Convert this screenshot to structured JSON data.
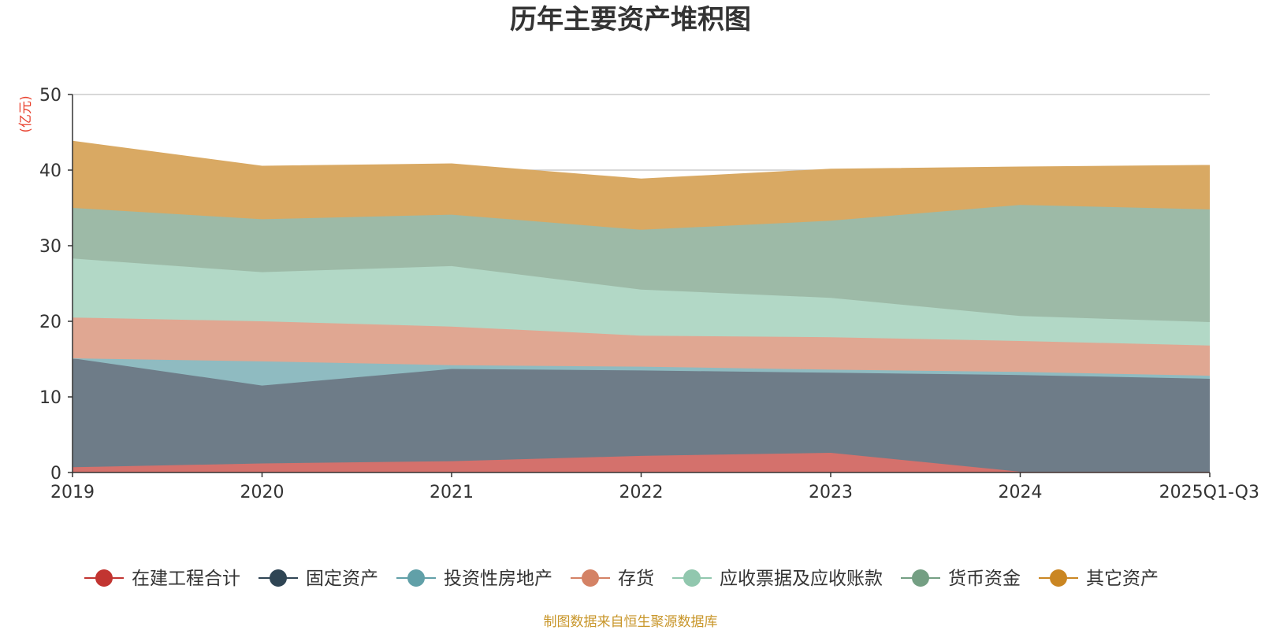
{
  "chart_data": {
    "type": "area",
    "stacked": true,
    "title": "历年主要资产堆积图",
    "ylabel": "(亿元)",
    "xlabel": "",
    "ylim": [
      0,
      50
    ],
    "yticks": [
      0,
      10,
      20,
      30,
      40,
      50
    ],
    "categories": [
      "2019",
      "2020",
      "2021",
      "2022",
      "2023",
      "2024",
      "2025Q1-Q3"
    ],
    "grid": true,
    "legend_position": "bottom",
    "series": [
      {
        "name": "在建工程合计",
        "color": "#c23531",
        "fill": "#d4716c",
        "values": [
          0.7,
          1.2,
          1.5,
          2.2,
          2.6,
          0.1,
          0.1
        ]
      },
      {
        "name": "固定资产",
        "color": "#2f4554",
        "fill": "#6e7c88",
        "values": [
          14.4,
          10.3,
          12.2,
          11.3,
          10.6,
          12.8,
          12.3
        ]
      },
      {
        "name": "投资性房地产",
        "color": "#61a0a8",
        "fill": "#8fbbc1",
        "values": [
          0.0,
          3.2,
          0.5,
          0.5,
          0.4,
          0.4,
          0.4
        ]
      },
      {
        "name": "存货",
        "color": "#d48265",
        "fill": "#e0a792",
        "values": [
          5.4,
          5.3,
          5.1,
          4.1,
          4.3,
          4.1,
          4.0
        ]
      },
      {
        "name": "应收票据及应收账款",
        "color": "#91c7ae",
        "fill": "#b2d8c6",
        "values": [
          7.8,
          6.5,
          8.0,
          6.1,
          5.2,
          3.3,
          3.1
        ]
      },
      {
        "name": "货币资金",
        "color": "#749f83",
        "fill": "#9dbaa7",
        "values": [
          6.7,
          7.0,
          6.8,
          7.9,
          10.2,
          14.7,
          14.9
        ]
      },
      {
        "name": "其它资产",
        "color": "#ca8622",
        "fill": "#d9a963",
        "values": [
          8.8,
          7.0,
          6.7,
          6.7,
          6.8,
          5.0,
          5.8
        ]
      }
    ]
  },
  "footer": {
    "source": "制图数据来自恒生聚源数据库"
  }
}
